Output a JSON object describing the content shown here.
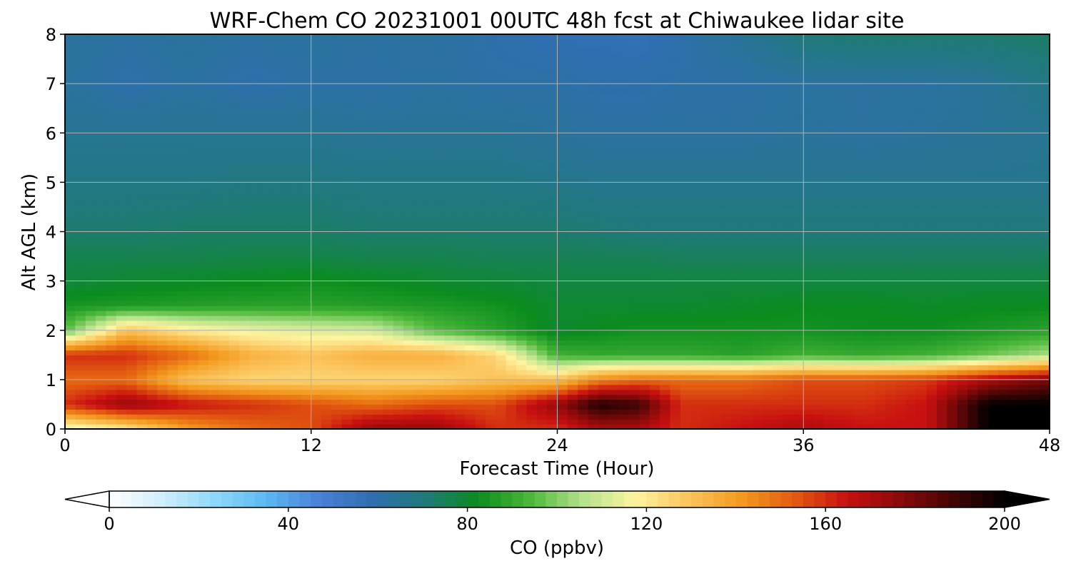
{
  "chart_data": {
    "type": "heatmap",
    "title": "WRF-Chem CO  20231001 00UTC 48h fcst at Chiwaukee lidar site",
    "xlabel": "Forecast Time (Hour)",
    "ylabel": "Alt AGL (km)",
    "xlim": [
      0,
      48
    ],
    "ylim": [
      0,
      8
    ],
    "x_ticks": [
      "0",
      "12",
      "24",
      "36",
      "48"
    ],
    "y_ticks": [
      "0",
      "1",
      "2",
      "3",
      "4",
      "5",
      "6",
      "7",
      "8"
    ],
    "grid": true,
    "colorbar": {
      "label": "CO  (ppbv)",
      "range": [
        0,
        200
      ],
      "ticks": [
        "0",
        "40",
        "80",
        "120",
        "160",
        "200"
      ],
      "extend": "both",
      "colors": [
        "#ffffff",
        "#cfeefc",
        "#8fd8fa",
        "#5ab8f2",
        "#4a7fd6",
        "#2f6fb0",
        "#1f7a78",
        "#0b8c1e",
        "#4cb83a",
        "#b6e28c",
        "#fff4a0",
        "#fbc35a",
        "#f39a1e",
        "#e35b10",
        "#c81010",
        "#8c0a0a",
        "#450505",
        "#000000"
      ]
    },
    "profile_heights_km": [
      0,
      0.5,
      1,
      1.5,
      2,
      2.5,
      3,
      3.5,
      4,
      5,
      6,
      7,
      8
    ],
    "profiles": [
      {
        "x": 0,
        "co": [
          110,
          160,
          150,
          160,
          95,
          85,
          78,
          76,
          72,
          68,
          65,
          63,
          63
        ]
      },
      {
        "x": 3,
        "co": [
          120,
          175,
          150,
          160,
          130,
          86,
          80,
          76,
          72,
          68,
          65,
          60,
          62
        ]
      },
      {
        "x": 6,
        "co": [
          140,
          165,
          130,
          150,
          120,
          87,
          81,
          76,
          73,
          68,
          65,
          62,
          63
        ]
      },
      {
        "x": 9,
        "co": [
          150,
          160,
          125,
          135,
          115,
          88,
          82,
          77,
          73,
          69,
          65,
          60,
          62
        ]
      },
      {
        "x": 12,
        "co": [
          155,
          155,
          125,
          130,
          112,
          88,
          83,
          77,
          73,
          69,
          65,
          61,
          63
        ]
      },
      {
        "x": 15,
        "co": [
          175,
          150,
          125,
          135,
          110,
          87,
          82,
          76,
          72,
          68,
          64,
          61,
          62
        ]
      },
      {
        "x": 18,
        "co": [
          175,
          155,
          125,
          135,
          95,
          86,
          80,
          76,
          72,
          68,
          64,
          62,
          62
        ]
      },
      {
        "x": 21,
        "co": [
          160,
          155,
          130,
          125,
          88,
          84,
          79,
          75,
          72,
          68,
          64,
          61,
          60
        ]
      },
      {
        "x": 24,
        "co": [
          160,
          175,
          130,
          92,
          80,
          80,
          78,
          75,
          72,
          67,
          63,
          61,
          58
        ]
      },
      {
        "x": 26,
        "co": [
          170,
          195,
          145,
          90,
          82,
          80,
          78,
          75,
          71,
          66,
          62,
          60,
          58
        ]
      },
      {
        "x": 28,
        "co": [
          170,
          190,
          150,
          90,
          84,
          80,
          78,
          75,
          70,
          66,
          62,
          60,
          57
        ]
      },
      {
        "x": 30,
        "co": [
          160,
          160,
          150,
          90,
          84,
          80,
          78,
          74,
          70,
          66,
          62,
          61,
          60
        ]
      },
      {
        "x": 33,
        "co": [
          165,
          160,
          150,
          88,
          84,
          81,
          78,
          74,
          70,
          66,
          62,
          61,
          64
        ]
      },
      {
        "x": 36,
        "co": [
          170,
          160,
          155,
          92,
          84,
          82,
          78,
          74,
          70,
          66,
          63,
          62,
          70
        ]
      },
      {
        "x": 39,
        "co": [
          165,
          160,
          155,
          90,
          83,
          82,
          78,
          74,
          70,
          66,
          62,
          62,
          72
        ]
      },
      {
        "x": 42,
        "co": [
          165,
          165,
          158,
          92,
          83,
          81,
          78,
          74,
          70,
          66,
          63,
          62,
          72
        ]
      },
      {
        "x": 45,
        "co": [
          200,
          200,
          170,
          98,
          85,
          82,
          78,
          74,
          70,
          66,
          64,
          64,
          72
        ]
      },
      {
        "x": 48,
        "co": [
          200,
          200,
          180,
          105,
          88,
          82,
          78,
          74,
          70,
          66,
          65,
          68,
          73
        ]
      }
    ]
  }
}
